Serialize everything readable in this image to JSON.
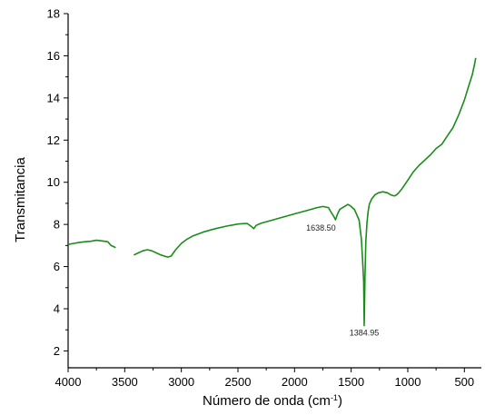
{
  "chart_data": {
    "type": "line",
    "title": "",
    "xlabel": "Número de onda (cm",
    "xlabel_sup": "-1",
    "xlabel_close": ")",
    "ylabel": "Transmitancia",
    "xlim": [
      4000,
      350
    ],
    "ylim": [
      1.2,
      18
    ],
    "x_reversed": true,
    "grid": false,
    "legend": "none",
    "x_ticks": [
      4000,
      3500,
      3000,
      2500,
      2000,
      1500,
      1000,
      500
    ],
    "x_tick_labels": [
      "4000",
      "3500",
      "3000",
      "2500",
      "2000",
      "1500",
      "1000",
      "500"
    ],
    "y_ticks": [
      2,
      4,
      6,
      8,
      10,
      12,
      14,
      16,
      18
    ],
    "y_tick_labels": [
      "2",
      "4",
      "6",
      "8",
      "10",
      "12",
      "14",
      "16",
      "18"
    ],
    "line_color": "#1a8c1a",
    "series": [
      {
        "segments": [
          {
            "x": [
              4000,
              3950,
              3900,
              3850,
              3800,
              3750,
              3700,
              3650,
              3620,
              3600,
              3580
            ],
            "y": [
              7.05,
              7.1,
              7.15,
              7.18,
              7.2,
              7.25,
              7.22,
              7.18,
              7.0,
              6.95,
              6.9
            ]
          },
          {
            "x": [
              3420,
              3380,
              3340,
              3300,
              3260,
              3220,
              3180,
              3150,
              3120,
              3090,
              3050,
              3000,
              2950,
              2900,
              2850,
              2800,
              2700,
              2600,
              2500,
              2420,
              2380,
              2360,
              2340,
              2300,
              2200,
              2100,
              2000,
              1900,
              1800,
              1750,
              1700,
              1680,
              1650,
              1638.5,
              1620,
              1600,
              1560,
              1530,
              1510,
              1490,
              1470,
              1450,
              1430,
              1410,
              1400,
              1390,
              1384.95,
              1378,
              1370,
              1360,
              1350,
              1340,
              1320,
              1290,
              1260,
              1220,
              1180,
              1150,
              1120,
              1100,
              1080,
              1050,
              1000,
              950,
              900,
              850,
              800,
              750,
              700,
              650,
              600,
              550,
              500,
              460,
              430,
              410,
              400
            ],
            "y": [
              6.55,
              6.65,
              6.75,
              6.8,
              6.75,
              6.65,
              6.55,
              6.5,
              6.45,
              6.5,
              6.8,
              7.1,
              7.3,
              7.45,
              7.55,
              7.65,
              7.8,
              7.92,
              8.02,
              8.05,
              7.9,
              7.8,
              7.95,
              8.05,
              8.2,
              8.35,
              8.5,
              8.65,
              8.8,
              8.85,
              8.8,
              8.6,
              8.35,
              8.22,
              8.5,
              8.72,
              8.85,
              8.95,
              8.9,
              8.8,
              8.7,
              8.45,
              8.2,
              7.3,
              6.4,
              5.3,
              3.2,
              5.6,
              7.2,
              8.1,
              8.6,
              8.95,
              9.2,
              9.4,
              9.5,
              9.55,
              9.5,
              9.4,
              9.35,
              9.4,
              9.5,
              9.7,
              10.1,
              10.5,
              10.8,
              11.05,
              11.3,
              11.6,
              11.8,
              12.2,
              12.6,
              13.2,
              13.9,
              14.6,
              15.1,
              15.6,
              15.9
            ]
          }
        ]
      }
    ],
    "annotations": [
      {
        "text": "1638.50",
        "x": 1638.5,
        "y": 8.22,
        "position": "below-left"
      },
      {
        "text": "1384.95",
        "x": 1384.95,
        "y": 3.2,
        "position": "below"
      }
    ]
  }
}
